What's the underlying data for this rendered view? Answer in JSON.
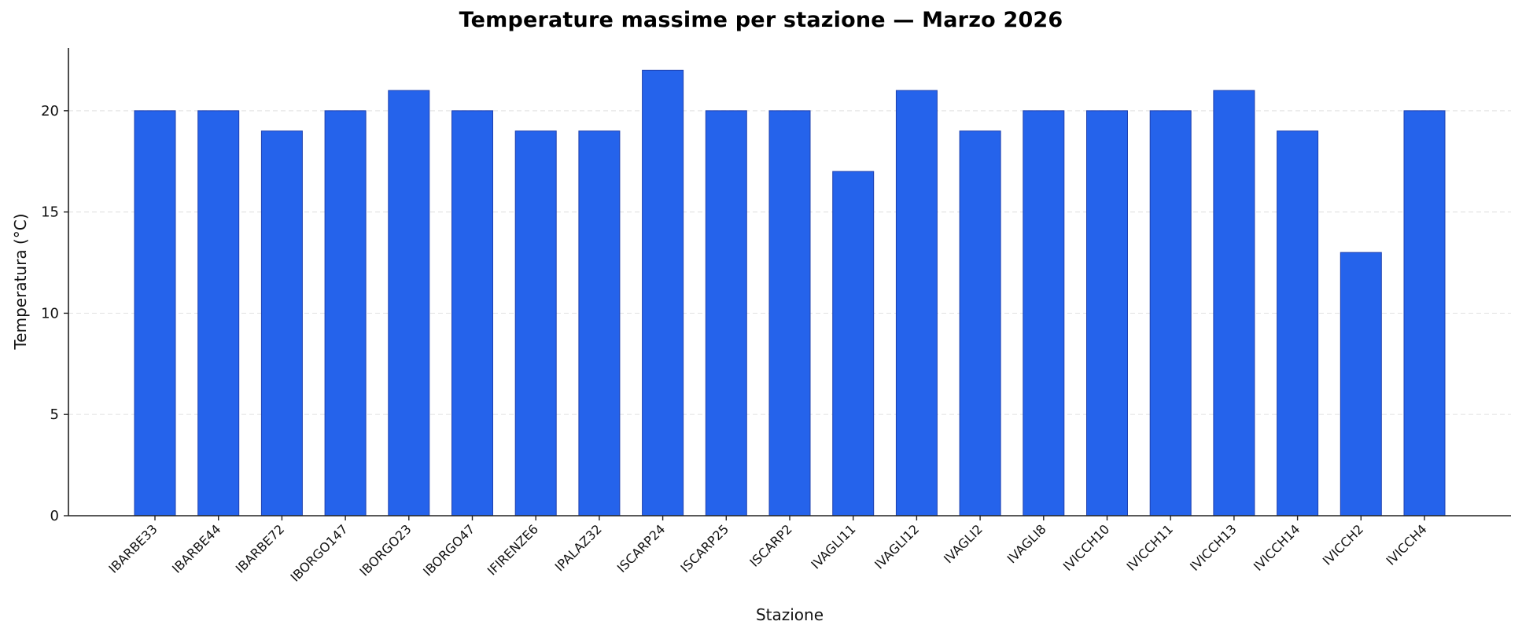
{
  "chart_data": {
    "type": "bar",
    "title": "Temperature massime per stazione — Marzo 2026",
    "xlabel": "Stazione",
    "ylabel": "Temperatura (°C)",
    "categories": [
      "IBARBE33",
      "IBARBE44",
      "IBARBE72",
      "IBORGO147",
      "IBORGO23",
      "IBORGO47",
      "IFIRENZE6",
      "IPALAZ32",
      "ISCARP24",
      "ISCARP25",
      "ISCARP2",
      "IVAGLI11",
      "IVAGLI12",
      "IVAGLI2",
      "IVAGLI8",
      "IVICCH10",
      "IVICCH11",
      "IVICCH13",
      "IVICCH14",
      "IVICCH2",
      "IVICCH4"
    ],
    "values": [
      20,
      20,
      19,
      20,
      21,
      20,
      19,
      19,
      22,
      20,
      20,
      17,
      21,
      19,
      20,
      20,
      20,
      21,
      19,
      13,
      20
    ],
    "ylim": [
      0,
      23.1
    ],
    "yticks": [
      0,
      5,
      10,
      15,
      20
    ],
    "grid": {
      "y": true,
      "x": false,
      "style": "dashed"
    },
    "legend": null,
    "bar_color": "#2563eb",
    "bar_edge_color": "#1e40af",
    "grid_color": "#e5e5e5",
    "axis_color": "#222222"
  }
}
